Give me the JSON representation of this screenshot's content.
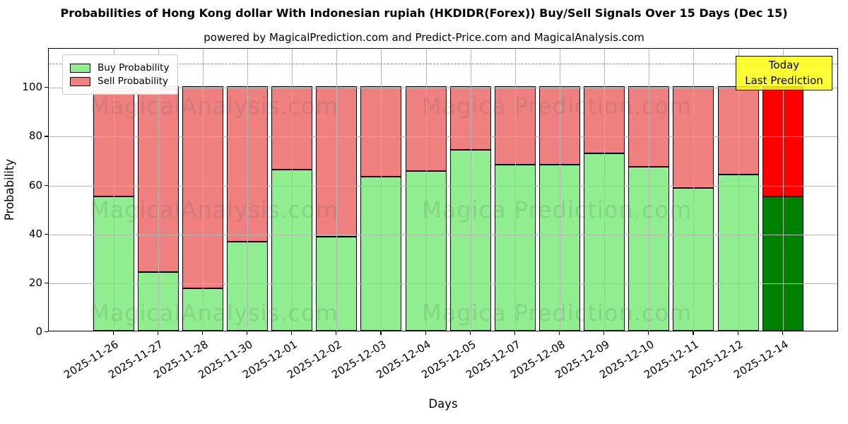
{
  "title": "Probabilities of Hong Kong dollar With Indonesian rupiah (HKDIDR(Forex)) Buy/Sell Signals Over 15 Days (Dec 15)",
  "subtitle": "powered by MagicalPrediction.com and Predict-Price.com and MagicalAnalysis.com",
  "annotation": {
    "line1": "Today",
    "line2": "Last Prediction",
    "bg_color": "#ffff00",
    "border_color": "#000000"
  },
  "watermark": {
    "left_text": "MagicalAnalysis.com",
    "right_text": "Magica Prediction.com"
  },
  "colors": {
    "buy": "#90ee90",
    "sell": "#f08080",
    "buy_today": "#008000",
    "sell_today": "#ff0000",
    "bar_edge": "#000000",
    "grid": "#b6b6b6",
    "dashed_line": "#8a8a8a"
  },
  "chart_data": {
    "type": "bar",
    "stacked": true,
    "title": "Probabilities of Hong Kong dollar With Indonesian rupiah (HKDIDR(Forex)) Buy/Sell Signals Over 15 Days (Dec 15)",
    "xlabel": "Days",
    "ylabel": "Probability",
    "ylim": [
      0,
      116
    ],
    "yticks": [
      0,
      20,
      40,
      60,
      80,
      100
    ],
    "dashed_line_y": 110,
    "grid": true,
    "legend_position": "upper left",
    "categories": [
      "2025-11-26",
      "2025-11-27",
      "2025-11-28",
      "2025-11-30",
      "2025-12-01",
      "2025-12-02",
      "2025-12-03",
      "2025-12-04",
      "2025-12-05",
      "2025-12-07",
      "2025-12-08",
      "2025-12-09",
      "2025-12-10",
      "2025-12-11",
      "2025-12-12",
      "2025-12-14"
    ],
    "series": [
      {
        "name": "Buy Probability",
        "values": [
          55,
          24,
          17.5,
          36.5,
          66,
          38.5,
          63,
          65.5,
          74,
          68,
          68,
          72.5,
          67,
          58.5,
          64,
          55
        ]
      },
      {
        "name": "Sell Probability",
        "values": [
          45,
          76,
          82.5,
          63.5,
          34,
          61.5,
          37,
          34.5,
          26,
          32,
          32,
          27.5,
          33,
          41.5,
          36,
          45
        ]
      }
    ],
    "today_index": 15
  }
}
